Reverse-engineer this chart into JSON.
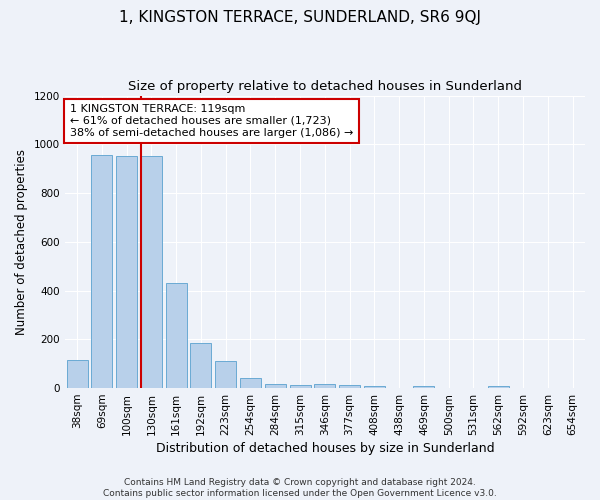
{
  "title": "1, KINGSTON TERRACE, SUNDERLAND, SR6 9QJ",
  "subtitle": "Size of property relative to detached houses in Sunderland",
  "xlabel": "Distribution of detached houses by size in Sunderland",
  "ylabel": "Number of detached properties",
  "categories": [
    "38sqm",
    "69sqm",
    "100sqm",
    "130sqm",
    "161sqm",
    "192sqm",
    "223sqm",
    "254sqm",
    "284sqm",
    "315sqm",
    "346sqm",
    "377sqm",
    "408sqm",
    "438sqm",
    "469sqm",
    "500sqm",
    "531sqm",
    "562sqm",
    "592sqm",
    "623sqm",
    "654sqm"
  ],
  "values": [
    115,
    955,
    950,
    950,
    430,
    185,
    110,
    40,
    18,
    12,
    15,
    12,
    10,
    0,
    10,
    0,
    0,
    10,
    0,
    0,
    0
  ],
  "bar_color": "#b8d0ea",
  "bar_edge_color": "#6aaad4",
  "highlight_bar_index": 3,
  "highlight_line_color": "#cc0000",
  "annotation_text": "1 KINGSTON TERRACE: 119sqm\n← 61% of detached houses are smaller (1,723)\n38% of semi-detached houses are larger (1,086) →",
  "annotation_box_color": "#ffffff",
  "annotation_box_edge_color": "#cc0000",
  "ylim": [
    0,
    1200
  ],
  "yticks": [
    0,
    200,
    400,
    600,
    800,
    1000,
    1200
  ],
  "bg_color": "#eef2f9",
  "plot_bg_color": "#eef2f9",
  "footer_line1": "Contains HM Land Registry data © Crown copyright and database right 2024.",
  "footer_line2": "Contains public sector information licensed under the Open Government Licence v3.0.",
  "title_fontsize": 11,
  "subtitle_fontsize": 9.5,
  "xlabel_fontsize": 9,
  "ylabel_fontsize": 8.5,
  "tick_fontsize": 7.5,
  "footer_fontsize": 6.5,
  "annotation_fontsize": 8
}
